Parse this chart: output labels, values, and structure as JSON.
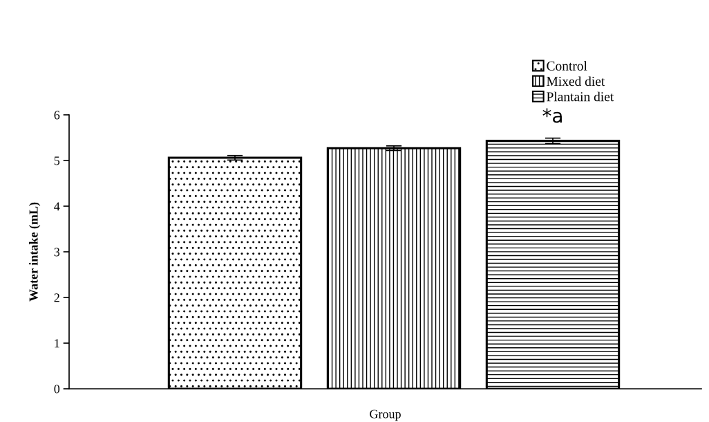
{
  "chart_data": {
    "type": "bar",
    "categories": [
      null
    ],
    "xlabel": "Group",
    "ylabel": "Water intake (mL)",
    "series": [
      {
        "name": "Control",
        "color": "#000000",
        "values": [
          5.06
        ],
        "errors": [
          0.05
        ]
      },
      {
        "name": "Mixed diet",
        "color": "#000000",
        "values": [
          5.27
        ],
        "errors": [
          0.05
        ]
      },
      {
        "name": "Plantain diet",
        "color": "#000000",
        "values": [
          5.43
        ],
        "errors": [
          0.06
        ]
      }
    ],
    "ylim": [
      0,
      6
    ],
    "yticks": [
      0,
      1,
      2,
      3,
      4,
      5,
      6
    ],
    "grid": false,
    "legend": "top right",
    "annotations": [
      "*a"
    ]
  }
}
